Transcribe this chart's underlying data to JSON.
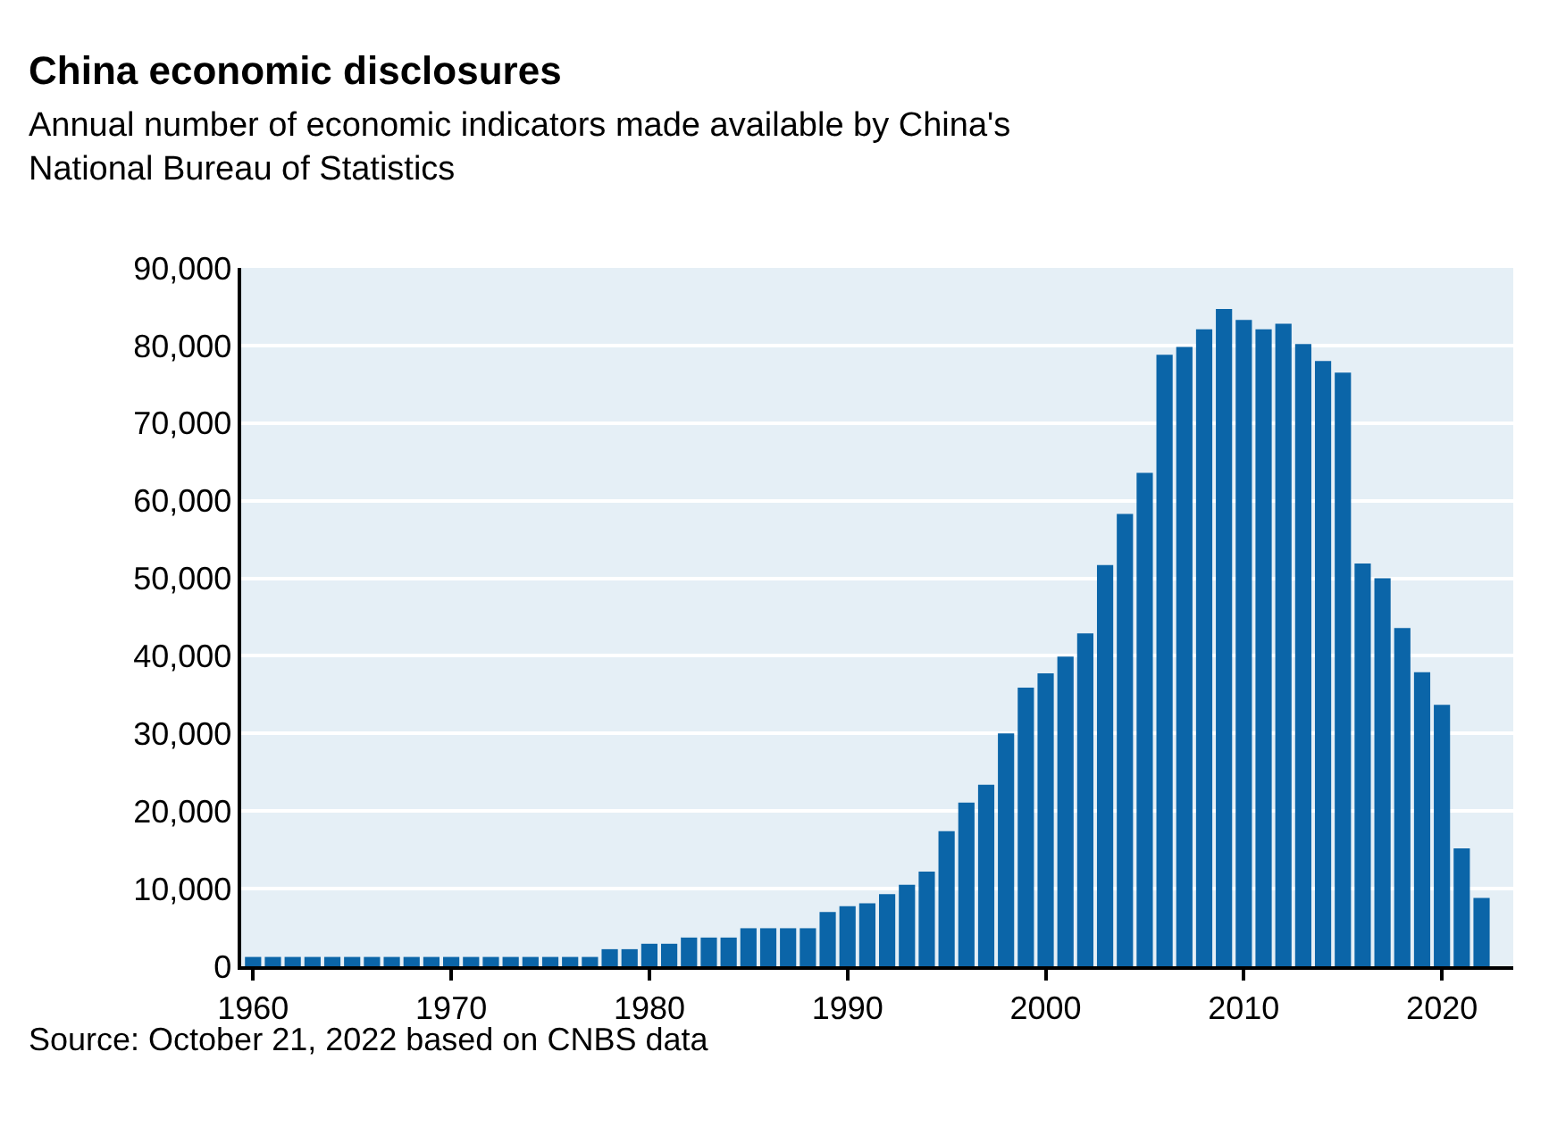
{
  "chart_data": {
    "type": "bar",
    "title": "China economic disclosures",
    "subtitle": "Annual number of economic indicators made available by China's\nNational Bureau of Statistics",
    "x": [
      1960,
      1961,
      1962,
      1963,
      1964,
      1965,
      1966,
      1967,
      1968,
      1969,
      1970,
      1971,
      1972,
      1973,
      1974,
      1975,
      1976,
      1977,
      1978,
      1979,
      1980,
      1981,
      1982,
      1983,
      1984,
      1985,
      1986,
      1987,
      1988,
      1989,
      1990,
      1991,
      1992,
      1993,
      1994,
      1995,
      1996,
      1997,
      1998,
      1999,
      2000,
      2001,
      2002,
      2003,
      2004,
      2005,
      2006,
      2007,
      2008,
      2009,
      2010,
      2011,
      2012,
      2013,
      2014,
      2015,
      2016,
      2017,
      2018,
      2019,
      2020,
      2021,
      2022
    ],
    "values": [
      1200,
      1200,
      1200,
      1200,
      1200,
      1200,
      1200,
      1200,
      1200,
      1200,
      1200,
      1200,
      1200,
      1200,
      1200,
      1200,
      1200,
      1200,
      2200,
      2200,
      2900,
      2900,
      3700,
      3700,
      3700,
      4900,
      4900,
      4900,
      4900,
      7000,
      7750,
      8100,
      9300,
      10500,
      12200,
      17400,
      21100,
      23400,
      30000,
      35900,
      37750,
      39900,
      42900,
      51700,
      58300,
      63600,
      78800,
      79800,
      82100,
      84700,
      83300,
      82100,
      82800,
      80200,
      78000,
      76500,
      51900,
      50000,
      43600,
      37900,
      33700,
      15200,
      8800
    ],
    "color": "#0b65a8",
    "xlim": [
      1959.4,
      2023.6
    ],
    "xticks": [
      1960,
      1970,
      1980,
      1990,
      2000,
      2010,
      2020
    ],
    "ylim": [
      0,
      90000
    ],
    "yticks": [
      {
        "value": 0,
        "label": "0"
      },
      {
        "value": 10000,
        "label": "10,000"
      },
      {
        "value": 20000,
        "label": "20,000"
      },
      {
        "value": 30000,
        "label": "30,000"
      },
      {
        "value": 40000,
        "label": "40,000"
      },
      {
        "value": 50000,
        "label": "50,000"
      },
      {
        "value": 60000,
        "label": "60,000"
      },
      {
        "value": 70000,
        "label": "70,000"
      },
      {
        "value": 80000,
        "label": "80,000"
      },
      {
        "value": 90000,
        "label": "90,000"
      }
    ],
    "grid": "y",
    "annotations": [
      "Source: October 21, 2022 based on CNBS data"
    ]
  }
}
